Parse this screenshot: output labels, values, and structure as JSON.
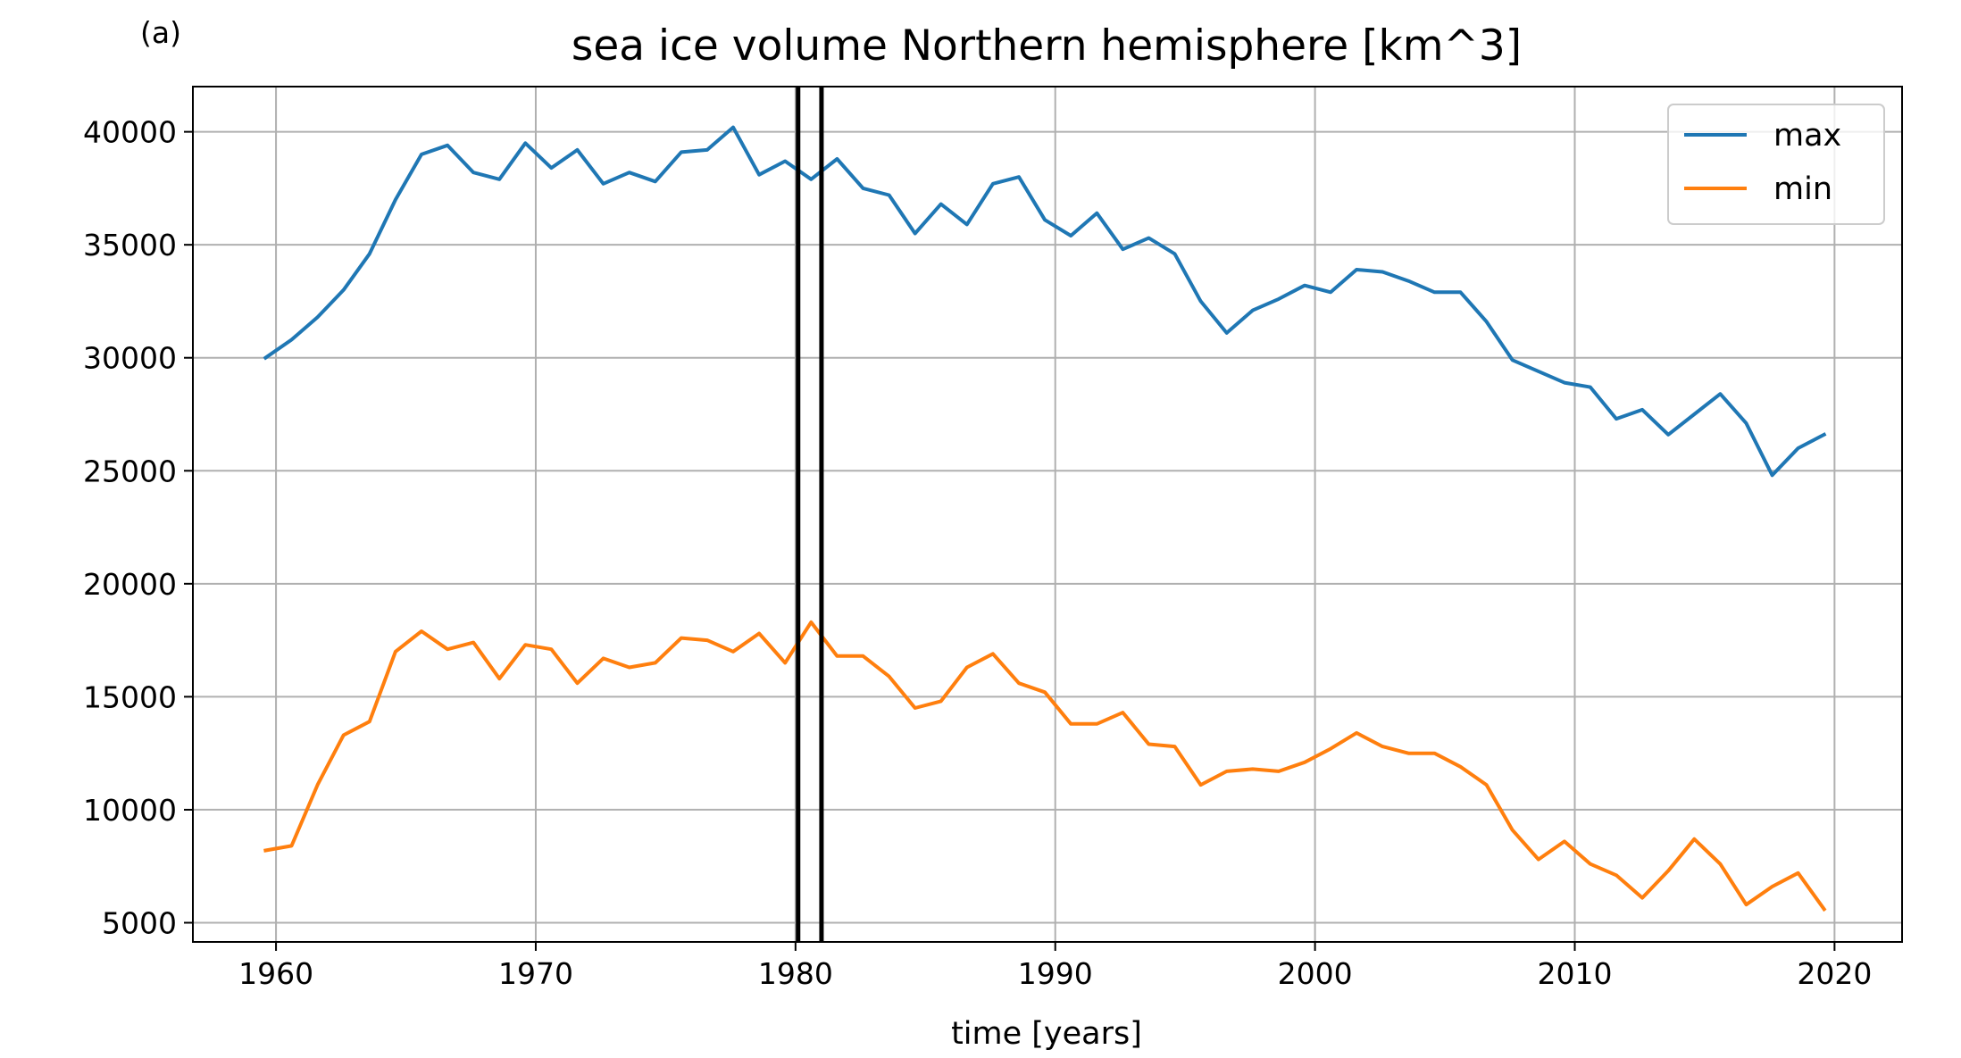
{
  "panel_label": "(a)",
  "chart_data": {
    "type": "line",
    "title": "sea ice volume Northern hemisphere [km^3]",
    "xlabel": "time [years]",
    "ylabel": "",
    "xlim": [
      1956.8,
      2022.6
    ],
    "ylim": [
      4150,
      42000
    ],
    "xticks": [
      1960,
      1970,
      1980,
      1990,
      2000,
      2010,
      2020
    ],
    "yticks": [
      5000,
      10000,
      15000,
      20000,
      25000,
      30000,
      35000,
      40000
    ],
    "grid": true,
    "legend_position": "top-right",
    "vertical_lines": [
      1980.1,
      1981.0
    ],
    "vertical_line_color": "#000000",
    "x": [
      1959.6,
      1960.6,
      1961.6,
      1962.6,
      1963.6,
      1964.6,
      1965.6,
      1966.6,
      1967.6,
      1968.6,
      1969.6,
      1970.6,
      1971.6,
      1972.6,
      1973.6,
      1974.6,
      1975.6,
      1976.6,
      1977.6,
      1978.6,
      1979.6,
      1980.6,
      1981.6,
      1982.6,
      1983.6,
      1984.6,
      1985.6,
      1986.6,
      1987.6,
      1988.6,
      1989.6,
      1990.6,
      1991.6,
      1992.6,
      1993.6,
      1994.6,
      1995.6,
      1996.6,
      1997.6,
      1998.6,
      1999.6,
      2000.6,
      2001.6,
      2002.6,
      2003.6,
      2004.6,
      2005.6,
      2006.6,
      2007.6,
      2008.6,
      2009.6,
      2010.6,
      2011.6,
      2012.6,
      2013.6,
      2014.6,
      2015.6,
      2016.6,
      2017.6,
      2018.6,
      2019.6
    ],
    "series": [
      {
        "name": "max",
        "color": "#1f77b4",
        "values": [
          30000,
          30800,
          31800,
          33000,
          34600,
          37000,
          39000,
          39400,
          38200,
          37900,
          39500,
          38400,
          39200,
          37700,
          38200,
          37800,
          39100,
          39200,
          40200,
          38100,
          38700,
          37900,
          38800,
          37500,
          37200,
          35500,
          36800,
          35900,
          37700,
          38000,
          36100,
          35400,
          36400,
          34800,
          35300,
          34600,
          32500,
          31100,
          32100,
          32600,
          33200,
          32900,
          33900,
          33800,
          33400,
          32900,
          32900,
          31600,
          29900,
          29400,
          28900,
          28700,
          27300,
          27700,
          26600,
          27500,
          28400,
          27100,
          24800,
          26000,
          26600
        ]
      },
      {
        "name": "min",
        "color": "#ff7f0e",
        "values": [
          8200,
          8400,
          11100,
          13300,
          13900,
          17000,
          17900,
          17100,
          17400,
          15800,
          17300,
          17100,
          15600,
          16700,
          16300,
          16500,
          17600,
          17500,
          17000,
          17800,
          16500,
          18300,
          16800,
          16800,
          15900,
          14500,
          14800,
          16300,
          16900,
          15600,
          15200,
          13800,
          13800,
          14300,
          12900,
          12800,
          11100,
          11700,
          11800,
          11700,
          12100,
          12700,
          13400,
          12800,
          12500,
          12500,
          11900,
          11100,
          9100,
          7800,
          8600,
          7600,
          7100,
          6100,
          7300,
          8700,
          7600,
          5800,
          6600,
          7200,
          5600
        ]
      }
    ]
  }
}
